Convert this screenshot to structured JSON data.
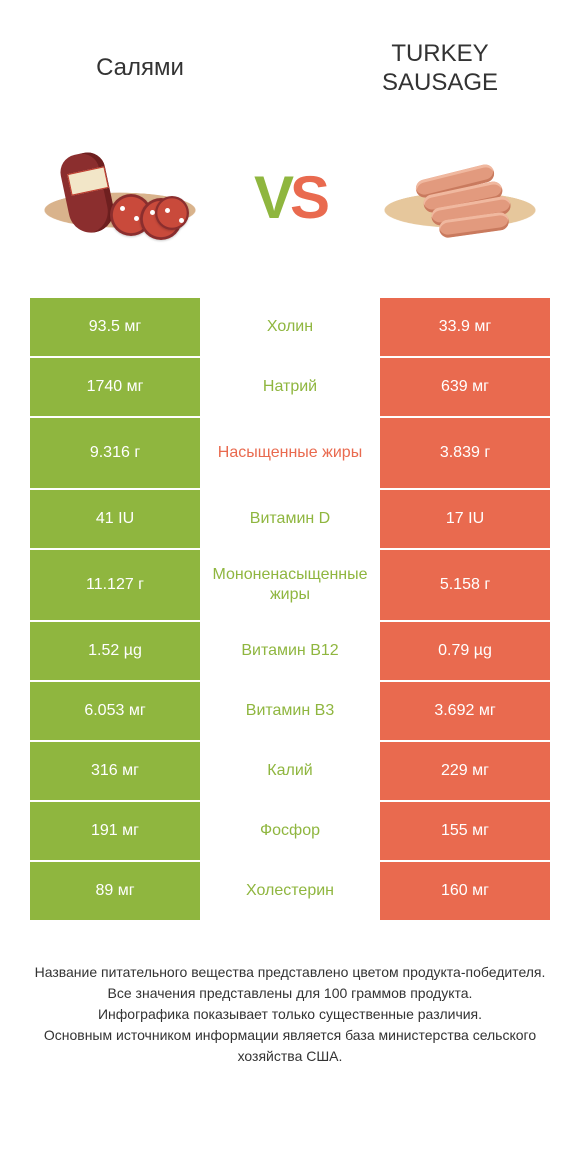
{
  "header": {
    "left_title": "Салями",
    "right_title": "TURKEY SAUSAGE",
    "vs_v": "V",
    "vs_s": "S"
  },
  "colors": {
    "green": "#8fb63f",
    "orange": "#e96a4f",
    "background": "#ffffff",
    "text": "#333333"
  },
  "table": {
    "left_bg_color": "#8fb63f",
    "right_bg_color": "#e96a4f",
    "rows": [
      {
        "label": "Холин",
        "left": "93.5 мг",
        "right": "33.9 мг",
        "winner": "left",
        "tall": false
      },
      {
        "label": "Натрий",
        "left": "1740 мг",
        "right": "639 мг",
        "winner": "left",
        "tall": false
      },
      {
        "label": "Насыщенные жиры",
        "left": "9.316 г",
        "right": "3.839 г",
        "winner": "right",
        "tall": true
      },
      {
        "label": "Витамин D",
        "left": "41 IU",
        "right": "17 IU",
        "winner": "left",
        "tall": false
      },
      {
        "label": "Мононенасыщенные жиры",
        "left": "11.127 г",
        "right": "5.158 г",
        "winner": "left",
        "tall": true
      },
      {
        "label": "Витамин B12",
        "left": "1.52 µg",
        "right": "0.79 µg",
        "winner": "left",
        "tall": false
      },
      {
        "label": "Витамин B3",
        "left": "6.053 мг",
        "right": "3.692 мг",
        "winner": "left",
        "tall": false
      },
      {
        "label": "Калий",
        "left": "316 мг",
        "right": "229 мг",
        "winner": "left",
        "tall": false
      },
      {
        "label": "Фосфор",
        "left": "191 мг",
        "right": "155 мг",
        "winner": "left",
        "tall": false
      },
      {
        "label": "Холестерин",
        "left": "89 мг",
        "right": "160 мг",
        "winner": "left",
        "tall": false
      }
    ]
  },
  "footer": {
    "line1": "Название питательного вещества представлено цветом продукта-победителя.",
    "line2": "Все значения представлены для 100 граммов продукта.",
    "line3": "Инфографика показывает только существенные различия.",
    "line4": "Основным источником информации является база министерства сельского хозяйства США."
  },
  "typography": {
    "title_fontsize": 24,
    "cell_fontsize": 16,
    "footer_fontsize": 14,
    "vs_fontsize": 60
  }
}
